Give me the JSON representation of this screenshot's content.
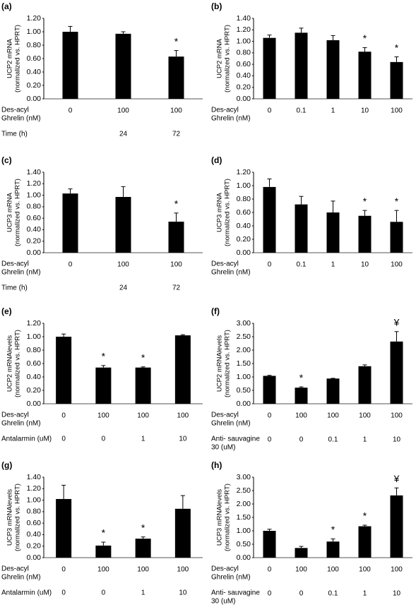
{
  "chart_data": [
    {
      "type": "bar",
      "panel": "(a)",
      "ylabel": [
        "UCP2 mRNA",
        "(normalized vs. HPRT)"
      ],
      "color": "#000000",
      "ylim": [
        0,
        1.2
      ],
      "yticks": [
        {
          "value": 0,
          "label": "0.00"
        },
        {
          "value": 0.2,
          "label": "0.20"
        },
        {
          "value": 0.4,
          "label": "0.40"
        },
        {
          "value": 0.6,
          "label": "0.60"
        },
        {
          "value": 0.8,
          "label": "0.80"
        },
        {
          "value": 1.0,
          "label": "1.00"
        },
        {
          "value": 1.2,
          "label": "1.20"
        }
      ],
      "rows": [
        {
          "label": [
            "Des-acyl",
            "Ghrelin (nM)"
          ],
          "categories": [
            "0",
            "100",
            "100"
          ]
        },
        {
          "label": [
            "Time (h)"
          ],
          "categories": [
            null,
            "24",
            "72"
          ]
        }
      ],
      "values": [
        1.0,
        0.97,
        0.63
      ],
      "errors": [
        0.08,
        0.03,
        0.09
      ],
      "annotations": [
        null,
        null,
        "*"
      ]
    },
    {
      "type": "bar",
      "panel": "(b)",
      "ylabel": [
        "UCP2 mRNA",
        "(normalized vs. HPRT)"
      ],
      "color": "#000000",
      "ylim": [
        0,
        1.4
      ],
      "yticks": [
        {
          "value": 0,
          "label": "0.00"
        },
        {
          "value": 0.2,
          "label": "0.20"
        },
        {
          "value": 0.4,
          "label": "0.40"
        },
        {
          "value": 0.6,
          "label": "0.60"
        },
        {
          "value": 0.8,
          "label": "0.80"
        },
        {
          "value": 1.0,
          "label": "1.00"
        },
        {
          "value": 1.2,
          "label": "1.20"
        },
        {
          "value": 1.4,
          "label": "1.40"
        }
      ],
      "rows": [
        {
          "label": [
            "Des-acyl",
            "Ghrelin (nM)"
          ],
          "categories": [
            "0",
            "0.1",
            "1",
            "10",
            "100"
          ]
        }
      ],
      "values": [
        1.06,
        1.15,
        1.02,
        0.82,
        0.64
      ],
      "errors": [
        0.05,
        0.08,
        0.08,
        0.07,
        0.09
      ],
      "annotations": [
        null,
        null,
        null,
        "*",
        "*"
      ]
    },
    {
      "type": "bar",
      "panel": "(c)",
      "ylabel": [
        "UCP3 mRNA",
        "(normalized vs. HPRT)"
      ],
      "color": "#000000",
      "ylim": [
        0,
        1.4
      ],
      "yticks": [
        {
          "value": 0,
          "label": "0.00"
        },
        {
          "value": 0.2,
          "label": "0.20"
        },
        {
          "value": 0.4,
          "label": "0.40"
        },
        {
          "value": 0.6,
          "label": "0.60"
        },
        {
          "value": 0.8,
          "label": "0.80"
        },
        {
          "value": 1.0,
          "label": "1.00"
        },
        {
          "value": 1.2,
          "label": "1.20"
        },
        {
          "value": 1.4,
          "label": "1.40"
        }
      ],
      "rows": [
        {
          "label": [
            "Des-acyl",
            "Ghrelin (nM)"
          ],
          "categories": [
            "0",
            "100",
            "100"
          ]
        },
        {
          "label": [
            "Time (h)"
          ],
          "categories": [
            null,
            "24",
            "72"
          ]
        }
      ],
      "values": [
        1.03,
        0.97,
        0.54
      ],
      "errors": [
        0.08,
        0.18,
        0.15
      ],
      "annotations": [
        null,
        null,
        "*"
      ]
    },
    {
      "type": "bar",
      "panel": "(d)",
      "ylabel": [
        "UCP3 mRNA",
        "(normalized vs. HPRT)"
      ],
      "color": "#000000",
      "ylim": [
        0,
        1.2
      ],
      "yticks": [
        {
          "value": 0,
          "label": "0.00"
        },
        {
          "value": 0.2,
          "label": "0.20"
        },
        {
          "value": 0.4,
          "label": "0.40"
        },
        {
          "value": 0.6,
          "label": "0.60"
        },
        {
          "value": 0.8,
          "label": "0.80"
        },
        {
          "value": 1.0,
          "label": "1.00"
        },
        {
          "value": 1.2,
          "label": "1.20"
        }
      ],
      "rows": [
        {
          "label": [
            "Des-acyl",
            "Ghrelin (nM)"
          ],
          "categories": [
            "0",
            "0.1",
            "1",
            "10",
            "100"
          ]
        }
      ],
      "values": [
        0.98,
        0.72,
        0.6,
        0.55,
        0.46
      ],
      "errors": [
        0.12,
        0.12,
        0.17,
        0.08,
        0.17
      ],
      "annotations": [
        null,
        null,
        null,
        "*",
        "*"
      ]
    },
    {
      "type": "bar",
      "panel": "(e)",
      "ylabel": [
        "UCP2 mRNAlevels",
        "(normalized vs. HPRT)"
      ],
      "color": "#000000",
      "ylim": [
        0,
        1.2
      ],
      "yticks": [
        {
          "value": 0,
          "label": "0.00"
        },
        {
          "value": 0.2,
          "label": "0.20"
        },
        {
          "value": 0.4,
          "label": "0.40"
        },
        {
          "value": 0.6,
          "label": "0.60"
        },
        {
          "value": 0.8,
          "label": "0.80"
        },
        {
          "value": 1.0,
          "label": "1.00"
        },
        {
          "value": 1.2,
          "label": "1.20"
        }
      ],
      "rows": [
        {
          "label": [
            "Des-acyl",
            "Ghrelin (nM)"
          ],
          "categories": [
            "0",
            "100",
            "100",
            "100"
          ]
        },
        {
          "label": [
            "Antalarmin (uM)"
          ],
          "categories": [
            "0",
            "0",
            "1",
            "10"
          ]
        }
      ],
      "values": [
        1.0,
        0.54,
        0.54,
        1.02
      ],
      "errors": [
        0.04,
        0.03,
        0.01,
        0.01
      ],
      "annotations": [
        null,
        "*",
        "*",
        null
      ]
    },
    {
      "type": "bar",
      "panel": "(f)",
      "ylabel": [
        "UCP2 mRNAlevels",
        "(normalized vs. HPRT)"
      ],
      "color": "#000000",
      "ylim": [
        0,
        3
      ],
      "yticks": [
        {
          "value": 0,
          "label": "0.00"
        },
        {
          "value": 0.5,
          "label": "0.50"
        },
        {
          "value": 1.0,
          "label": "1.00"
        },
        {
          "value": 1.5,
          "label": "1.50"
        },
        {
          "value": 2.0,
          "label": "2.00"
        },
        {
          "value": 2.5,
          "label": "2.50"
        },
        {
          "value": 3.0,
          "label": "3.00"
        }
      ],
      "rows": [
        {
          "label": [
            "Des-acyl",
            "Ghrelin (nM)"
          ],
          "categories": [
            "0",
            "100",
            "100",
            "100",
            "100"
          ]
        },
        {
          "label": [
            "Anti- sauvagine",
            "30 (uM)"
          ],
          "categories": [
            "0",
            "0",
            "0.1",
            "1",
            "10"
          ]
        }
      ],
      "values": [
        1.04,
        0.6,
        0.94,
        1.4,
        2.32
      ],
      "errors": [
        0.02,
        0.03,
        0.01,
        0.05,
        0.37
      ],
      "annotations": [
        null,
        "*",
        null,
        null,
        "¥"
      ]
    },
    {
      "type": "bar",
      "panel": "(g)",
      "ylabel": [
        "UCP3 mRNAlevels",
        "(normalized vs. HPRT)"
      ],
      "color": "#000000",
      "ylim": [
        0,
        1.4
      ],
      "yticks": [
        {
          "value": 0,
          "label": "0.00"
        },
        {
          "value": 0.2,
          "label": "0.20"
        },
        {
          "value": 0.4,
          "label": "0.40"
        },
        {
          "value": 0.6,
          "label": "0.60"
        },
        {
          "value": 0.8,
          "label": "0.80"
        },
        {
          "value": 1.0,
          "label": "1.00"
        },
        {
          "value": 1.2,
          "label": "1.20"
        },
        {
          "value": 1.4,
          "label": "1.40"
        }
      ],
      "rows": [
        {
          "label": [
            "Des-acyl",
            "Ghrelin (nM)"
          ],
          "categories": [
            "0",
            "100",
            "100",
            "100"
          ]
        },
        {
          "label": [
            "Antalarmin (uM)"
          ],
          "categories": [
            "0",
            "0",
            "1",
            "10"
          ]
        }
      ],
      "values": [
        1.02,
        0.21,
        0.33,
        0.85
      ],
      "errors": [
        0.24,
        0.06,
        0.03,
        0.23
      ],
      "annotations": [
        null,
        "*",
        "*",
        null
      ]
    },
    {
      "type": "bar",
      "panel": "(h)",
      "ylabel": [
        "UCP3 mRNAlevels",
        "(normalized vs. HPRT)"
      ],
      "color": "#000000",
      "ylim": [
        0,
        3
      ],
      "yticks": [
        {
          "value": 0,
          "label": "0.00"
        },
        {
          "value": 0.5,
          "label": "0.50"
        },
        {
          "value": 1.0,
          "label": "1.00"
        },
        {
          "value": 1.5,
          "label": "1.50"
        },
        {
          "value": 2.0,
          "label": "2.00"
        },
        {
          "value": 2.5,
          "label": "2.50"
        },
        {
          "value": 3.0,
          "label": "3.00"
        }
      ],
      "rows": [
        {
          "label": [
            "Des-acyl",
            "Ghrelin (nM)"
          ],
          "categories": [
            "0",
            "100",
            "100",
            "100",
            "100"
          ]
        },
        {
          "label": [
            "Anti- sauvagine",
            "30 (uM)"
          ],
          "categories": [
            "0",
            "0",
            "0.1",
            "1",
            "10"
          ]
        }
      ],
      "values": [
        1.0,
        0.36,
        0.6,
        1.17,
        2.32
      ],
      "errors": [
        0.06,
        0.06,
        0.1,
        0.04,
        0.28
      ],
      "annotations": [
        null,
        null,
        "*",
        "*",
        "¥"
      ]
    }
  ]
}
